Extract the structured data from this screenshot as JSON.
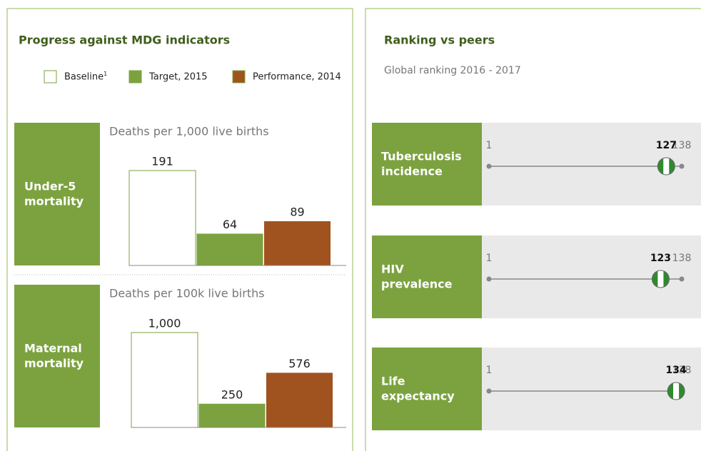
{
  "left": {
    "title": "Progress against MDG indicators",
    "legend": [
      {
        "name": "Baseline",
        "note": "1",
        "color": "#ffffff"
      },
      {
        "name": "Target, 2015",
        "color": "#7ba23f"
      },
      {
        "name": "Performance, 2014",
        "color": "#a0521f"
      }
    ]
  },
  "right": {
    "title": "Ranking vs peers",
    "subtitle": "Global ranking 2016 - 2017"
  },
  "chart_data": [
    {
      "type": "bar",
      "label": "Under-5 mortality",
      "subtitle": "Deaths per 1,000 live births",
      "values": [
        191,
        64,
        89
      ],
      "ylim": [
        0,
        191
      ]
    },
    {
      "type": "bar",
      "label": "Maternal mortality",
      "subtitle": "Deaths per 100k live births",
      "values": [
        1000,
        250,
        576
      ],
      "value_labels": [
        "1,000",
        "250",
        "576"
      ],
      "ylim": [
        0,
        1000
      ]
    },
    {
      "type": "ranking",
      "label": "Tuberculosis incidence",
      "value": 127,
      "xlim": [
        1,
        138
      ],
      "xticks": [
        1,
        138
      ]
    },
    {
      "type": "ranking",
      "label": "HIV prevalence",
      "value": 123,
      "xlim": [
        1,
        138
      ],
      "xticks": [
        1,
        138
      ]
    },
    {
      "type": "ranking",
      "label": "Life expectancy",
      "value": 134,
      "xlim": [
        1,
        138
      ],
      "xticks": [
        1,
        138
      ]
    }
  ]
}
